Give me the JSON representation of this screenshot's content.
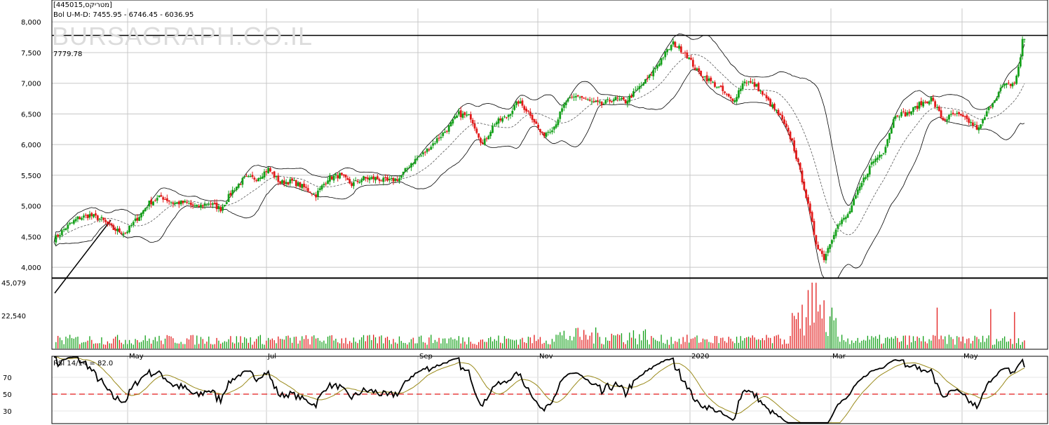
{
  "header": {
    "symbol": "[445015,מטריקס]",
    "bollinger_label": "Bol U-M-D: 7455.95 - 6746.45 - 6036.95",
    "watermark": "BURSAGRAPH.CO.IL",
    "level_label": "7779.78",
    "rsi_label": "RSI 14/14 = 82.0"
  },
  "colors": {
    "up": "#14a01a",
    "down": "#e21a1a",
    "band": "#000000",
    "middle": "#555555",
    "rsi_line": "#000000",
    "rsi_signal": "#9a8a1a",
    "rsi_mid": "#e21a1a",
    "grid": "#c8c8c8"
  },
  "chart_data": [
    {
      "type": "candlestick",
      "name": "price",
      "x_ticks": [
        "May",
        "Jul",
        "Sep",
        "Nov",
        "2020",
        "Mar",
        "May"
      ],
      "y_ticks": [
        4000,
        4500,
        5000,
        5500,
        6000,
        6500,
        7000,
        7500,
        8000
      ],
      "y_tick_labels": [
        "4,000",
        "4,500",
        "5,000",
        "5,500",
        "6,000",
        "6,500",
        "7,000",
        "7,500",
        "8,000"
      ],
      "ylim": [
        3830,
        8220
      ],
      "horizontal_level": 7779.78,
      "anchor_closes": [
        [
          0,
          4450
        ],
        [
          6,
          4650
        ],
        [
          12,
          4800
        ],
        [
          18,
          4850
        ],
        [
          24,
          4780
        ],
        [
          30,
          4620
        ],
        [
          36,
          4560
        ],
        [
          42,
          4800
        ],
        [
          48,
          5050
        ],
        [
          54,
          5150
        ],
        [
          60,
          5050
        ],
        [
          66,
          5050
        ],
        [
          72,
          4980
        ],
        [
          78,
          5050
        ],
        [
          84,
          4950
        ],
        [
          90,
          5250
        ],
        [
          96,
          5450
        ],
        [
          102,
          5450
        ],
        [
          108,
          5600
        ],
        [
          114,
          5380
        ],
        [
          120,
          5400
        ],
        [
          126,
          5300
        ],
        [
          132,
          5180
        ],
        [
          138,
          5450
        ],
        [
          144,
          5500
        ],
        [
          150,
          5350
        ],
        [
          156,
          5450
        ],
        [
          162,
          5450
        ],
        [
          168,
          5400
        ],
        [
          174,
          5450
        ],
        [
          180,
          5700
        ],
        [
          186,
          5850
        ],
        [
          192,
          6050
        ],
        [
          198,
          6250
        ],
        [
          204,
          6500
        ],
        [
          210,
          6450
        ],
        [
          216,
          6000
        ],
        [
          222,
          6350
        ],
        [
          228,
          6450
        ],
        [
          234,
          6700
        ],
        [
          240,
          6500
        ],
        [
          246,
          6150
        ],
        [
          252,
          6300
        ],
        [
          258,
          6700
        ],
        [
          264,
          6800
        ],
        [
          270,
          6700
        ],
        [
          276,
          6650
        ],
        [
          282,
          6750
        ],
        [
          288,
          6700
        ],
        [
          294,
          6900
        ],
        [
          300,
          7100
        ],
        [
          306,
          7400
        ],
        [
          312,
          7650
        ],
        [
          318,
          7500
        ],
        [
          324,
          7200
        ],
        [
          330,
          7050
        ],
        [
          336,
          6900
        ],
        [
          342,
          6700
        ],
        [
          348,
          7050
        ],
        [
          354,
          6950
        ],
        [
          360,
          6700
        ],
        [
          366,
          6450
        ],
        [
          372,
          6050
        ],
        [
          378,
          5300
        ],
        [
          384,
          4400
        ],
        [
          388,
          4150
        ],
        [
          394,
          4650
        ],
        [
          400,
          4850
        ],
        [
          406,
          5300
        ],
        [
          412,
          5700
        ],
        [
          418,
          5900
        ],
        [
          424,
          6500
        ],
        [
          430,
          6500
        ],
        [
          436,
          6650
        ],
        [
          442,
          6750
        ],
        [
          448,
          6400
        ],
        [
          454,
          6500
        ],
        [
          460,
          6400
        ],
        [
          466,
          6250
        ],
        [
          472,
          6650
        ],
        [
          478,
          6950
        ],
        [
          484,
          7000
        ],
        [
          487,
          7400
        ],
        [
          488,
          7720
        ]
      ],
      "bollinger": {
        "upper": 7455.95,
        "middle": 6746.45,
        "lower": 6036.95
      }
    },
    {
      "type": "bar",
      "name": "volume",
      "y_ticks": [
        22540,
        45079
      ],
      "y_tick_labels": [
        "22,540",
        "45,079"
      ],
      "ylim": [
        0,
        45079
      ],
      "spikes": [
        [
          377,
          30000
        ],
        [
          380,
          40000
        ],
        [
          382,
          45079
        ],
        [
          384,
          45000
        ],
        [
          386,
          30000
        ],
        [
          388,
          33000
        ],
        [
          392,
          28000
        ],
        [
          445,
          28000
        ],
        [
          472,
          27000
        ],
        [
          484,
          25000
        ]
      ]
    },
    {
      "type": "line",
      "name": "rsi",
      "y_ticks": [
        30,
        50,
        70
      ],
      "y_tick_labels": [
        "30",
        "50",
        "70"
      ],
      "ylim": [
        15,
        95
      ],
      "midline": 50,
      "last_value": 82.0
    }
  ]
}
